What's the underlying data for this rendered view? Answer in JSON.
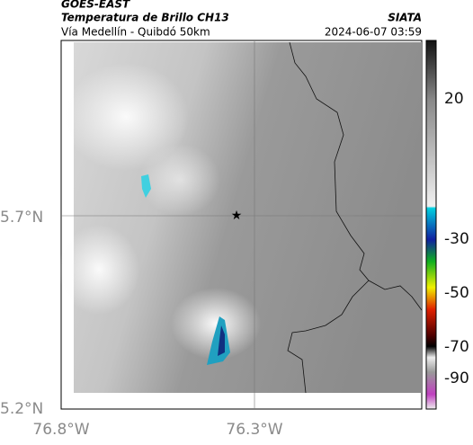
{
  "header": {
    "source": "GOES-EAST",
    "title": "Temperatura de Brillo CH13",
    "org": "SIATA",
    "subtitle": "Vía Medellín - Quibdó 50km",
    "datetime": "2024-06-07 03:59"
  },
  "axes": {
    "lat_labels": [
      "5.7°N",
      "5.2°N"
    ],
    "lon_labels": [
      "76.8°W",
      "76.3°W"
    ]
  },
  "colorbar": {
    "ticks": [
      "20",
      "-30",
      "-50",
      "-70",
      "-90"
    ]
  }
}
